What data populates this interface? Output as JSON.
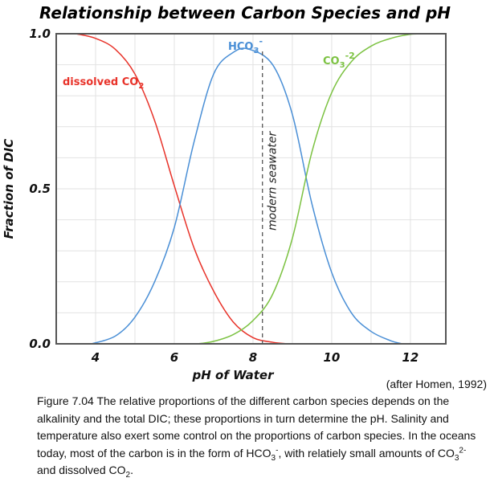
{
  "chart_data": {
    "type": "line",
    "title": "Relationship between Carbon Species and pH",
    "xlabel": "pH of Water",
    "ylabel": "Fraction of DIC",
    "xlim": [
      3.0,
      12.9
    ],
    "ylim": [
      0,
      1
    ],
    "x_ticks": [
      "4",
      "6",
      "8",
      "10",
      "12"
    ],
    "x_tick_values": [
      4,
      6,
      8,
      10,
      12
    ],
    "y_ticks": [
      "0.0",
      "0.5",
      "1.0"
    ],
    "y_tick_values": [
      0,
      0.5,
      1
    ],
    "grid": true,
    "series": [
      {
        "name": "dissolved CO2",
        "label_main": "dissolved CO",
        "label_sub": "2",
        "label_sup": "",
        "color": "#e8332a",
        "points": [
          [
            3.5,
            1.0
          ],
          [
            4,
            0.985
          ],
          [
            4.5,
            0.95
          ],
          [
            5,
            0.87
          ],
          [
            5.5,
            0.72
          ],
          [
            6,
            0.51
          ],
          [
            6.5,
            0.31
          ],
          [
            7,
            0.17
          ],
          [
            7.5,
            0.07
          ],
          [
            8,
            0.02
          ],
          [
            8.5,
            0.005
          ],
          [
            8.9,
            0
          ]
        ]
      },
      {
        "name": "HCO3-",
        "label_main": "HCO",
        "label_sub": "3",
        "label_sup": "-",
        "color": "#4a8fd6",
        "points": [
          [
            3.9,
            0
          ],
          [
            4.5,
            0.025
          ],
          [
            5,
            0.086
          ],
          [
            5.5,
            0.2
          ],
          [
            6,
            0.375
          ],
          [
            6.5,
            0.65
          ],
          [
            7,
            0.87
          ],
          [
            7.5,
            0.94
          ],
          [
            7.9,
            0.95
          ],
          [
            8.5,
            0.9
          ],
          [
            9,
            0.74
          ],
          [
            9.5,
            0.45
          ],
          [
            10,
            0.23
          ],
          [
            10.5,
            0.1
          ],
          [
            11,
            0.04
          ],
          [
            11.5,
            0.01
          ],
          [
            11.8,
            0
          ]
        ]
      },
      {
        "name": "CO3-2",
        "label_main": "CO",
        "label_sub": "3",
        "label_sup": "-2",
        "color": "#7cc242",
        "points": [
          [
            6.6,
            0
          ],
          [
            7,
            0.008
          ],
          [
            7.5,
            0.03
          ],
          [
            8,
            0.075
          ],
          [
            8.5,
            0.16
          ],
          [
            9,
            0.34
          ],
          [
            9.5,
            0.62
          ],
          [
            10,
            0.81
          ],
          [
            10.5,
            0.91
          ],
          [
            11,
            0.96
          ],
          [
            11.5,
            0.985
          ],
          [
            12,
            0.998
          ],
          [
            12.5,
            1.0
          ]
        ]
      }
    ],
    "annotations": [
      {
        "text": "modern seawater",
        "x": 8.24,
        "style": "dashed vertical line"
      }
    ]
  },
  "credit": "(after Homen, 1992)",
  "caption": {
    "line1": "Figure 7.04  The relative proportions of the different carbon species depends on the alkalinity and the total DIC; these proportions in turn determine the pH.  Salinity and temperature also exert some control on the proportions of carbon species.  In the oceans today, most of the carbon is in the form of HCO",
    "sub1": "3",
    "sup1": "-",
    "line2": ", with relatiely small amounts of CO",
    "sub2": "3",
    "sup2": "2-",
    "line3": " and dissolved CO",
    "sub3": "2",
    "line4": "."
  }
}
